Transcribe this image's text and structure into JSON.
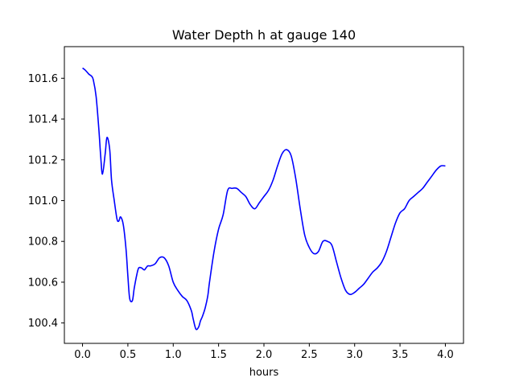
{
  "chart_data": {
    "type": "line",
    "title": "Water Depth h at gauge 140",
    "xlabel": "hours",
    "ylabel": "",
    "xlim": [
      -0.2,
      4.2
    ],
    "ylim": [
      100.3,
      101.755
    ],
    "x_ticks": [
      0.0,
      0.5,
      1.0,
      1.5,
      2.0,
      2.5,
      3.0,
      3.5,
      4.0
    ],
    "x_tick_labels": [
      "0.0",
      "0.5",
      "1.0",
      "1.5",
      "2.0",
      "2.5",
      "3.0",
      "3.5",
      "4.0"
    ],
    "y_ticks": [
      100.4,
      100.6,
      100.8,
      101.0,
      101.2,
      101.4,
      101.6
    ],
    "y_tick_labels": [
      "100.4",
      "100.6",
      "100.8",
      "101.0",
      "101.2",
      "101.4",
      "101.6"
    ],
    "grid": false,
    "series": [
      {
        "color": "#0000ff",
        "x": [
          0.0,
          0.03,
          0.07,
          0.1,
          0.12,
          0.15,
          0.18,
          0.2,
          0.22,
          0.25,
          0.27,
          0.3,
          0.32,
          0.35,
          0.38,
          0.4,
          0.42,
          0.45,
          0.48,
          0.5,
          0.52,
          0.55,
          0.57,
          0.6,
          0.62,
          0.65,
          0.68,
          0.7,
          0.72,
          0.75,
          0.8,
          0.85,
          0.9,
          0.95,
          1.0,
          1.05,
          1.1,
          1.15,
          1.2,
          1.22,
          1.25,
          1.28,
          1.3,
          1.32,
          1.35,
          1.38,
          1.4,
          1.45,
          1.5,
          1.55,
          1.6,
          1.65,
          1.7,
          1.75,
          1.8,
          1.85,
          1.9,
          1.95,
          2.0,
          2.05,
          2.1,
          2.15,
          2.2,
          2.25,
          2.3,
          2.35,
          2.4,
          2.45,
          2.5,
          2.55,
          2.6,
          2.65,
          2.7,
          2.75,
          2.8,
          2.85,
          2.9,
          2.95,
          3.0,
          3.05,
          3.1,
          3.15,
          3.2,
          3.25,
          3.3,
          3.35,
          3.4,
          3.45,
          3.5,
          3.55,
          3.6,
          3.65,
          3.7,
          3.75,
          3.8,
          3.85,
          3.9,
          3.95,
          4.0
        ],
        "values": [
          101.65,
          101.64,
          101.62,
          101.61,
          101.59,
          101.51,
          101.35,
          101.22,
          101.13,
          101.23,
          101.31,
          101.25,
          101.1,
          101.0,
          100.91,
          100.9,
          100.92,
          100.88,
          100.76,
          100.63,
          100.52,
          100.51,
          100.57,
          100.64,
          100.67,
          100.67,
          100.66,
          100.67,
          100.68,
          100.68,
          100.69,
          100.72,
          100.72,
          100.68,
          100.6,
          100.56,
          100.53,
          100.51,
          100.46,
          100.42,
          100.37,
          100.38,
          100.41,
          100.43,
          100.47,
          100.53,
          100.6,
          100.75,
          100.86,
          100.93,
          101.05,
          101.06,
          101.06,
          101.04,
          101.02,
          100.98,
          100.96,
          100.99,
          101.02,
          101.05,
          101.1,
          101.17,
          101.23,
          101.25,
          101.22,
          101.11,
          100.96,
          100.83,
          100.77,
          100.74,
          100.75,
          100.8,
          100.8,
          100.78,
          100.7,
          100.62,
          100.56,
          100.54,
          100.55,
          100.57,
          100.59,
          100.62,
          100.65,
          100.67,
          100.7,
          100.75,
          100.82,
          100.89,
          100.94,
          100.96,
          101.0,
          101.02,
          101.04,
          101.06,
          101.09,
          101.12,
          101.15,
          101.17,
          101.17
        ]
      }
    ]
  }
}
